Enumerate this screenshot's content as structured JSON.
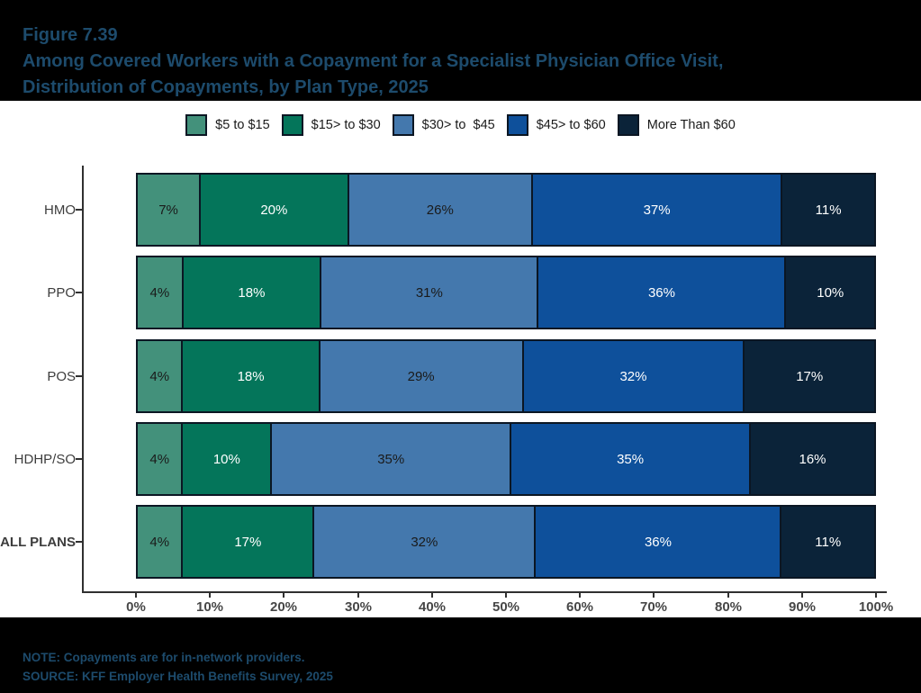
{
  "header": {
    "figure_label": "Figure 7.39",
    "title_line1": "Among Covered Workers with a Copayment for a Specialist Physician Office Visit,",
    "title_line2": "Distribution of Copayments, by Plan Type, 2025"
  },
  "footer": {
    "note": "NOTE: Copayments are for in-network providers.",
    "source": "SOURCE: KFF Employer Health Benefits Survey, 2025"
  },
  "colors": {
    "letterbox_background": "#000000",
    "title_text": "#1d4b6c",
    "chart_background": "#ffffff",
    "axis_line": "#303030",
    "axis_text": "#474747",
    "category_text": "#3d3d3d",
    "segment_border": "#0b1623"
  },
  "chart_data": {
    "type": "bar",
    "orientation": "horizontal",
    "stacked": true,
    "figure_label": "Figure 7.39",
    "title": "Among Covered Workers with a Copayment for a Specialist Physician Office Visit, Distribution of Copayments, by Plan Type, 2025",
    "legend_position": "top",
    "grid": false,
    "xlim": [
      0,
      100
    ],
    "value_suffix": "%",
    "x_ticks": [
      "0%",
      "10%",
      "20%",
      "30%",
      "40%",
      "50%",
      "60%",
      "70%",
      "80%",
      "90%",
      "100%"
    ],
    "categories": [
      "HMO",
      "PPO",
      "POS",
      "HDHP/SO",
      "ALL PLANS"
    ],
    "bold_categories": [
      "ALL PLANS"
    ],
    "series": [
      {
        "name": "$5 to $15",
        "color": "#43917b",
        "label_color": "#1a1a1a",
        "values": [
          7,
          4,
          4,
          4,
          4
        ]
      },
      {
        "name": "$15> to $30",
        "color": "#04755a",
        "label_color": "#ffffff",
        "values": [
          20,
          18,
          18,
          10,
          17
        ]
      },
      {
        "name": "$30> to  $45",
        "color": "#4478ad",
        "label_color": "#1a1a1a",
        "values": [
          26,
          31,
          29,
          35,
          32
        ]
      },
      {
        "name": "$45> to $60",
        "color": "#0e509b",
        "label_color": "#ffffff",
        "values": [
          37,
          36,
          32,
          35,
          36
        ]
      },
      {
        "name": "More Than $60",
        "color": "#0b2339",
        "label_color": "#ffffff",
        "values": [
          11,
          10,
          17,
          16,
          11
        ]
      }
    ]
  }
}
